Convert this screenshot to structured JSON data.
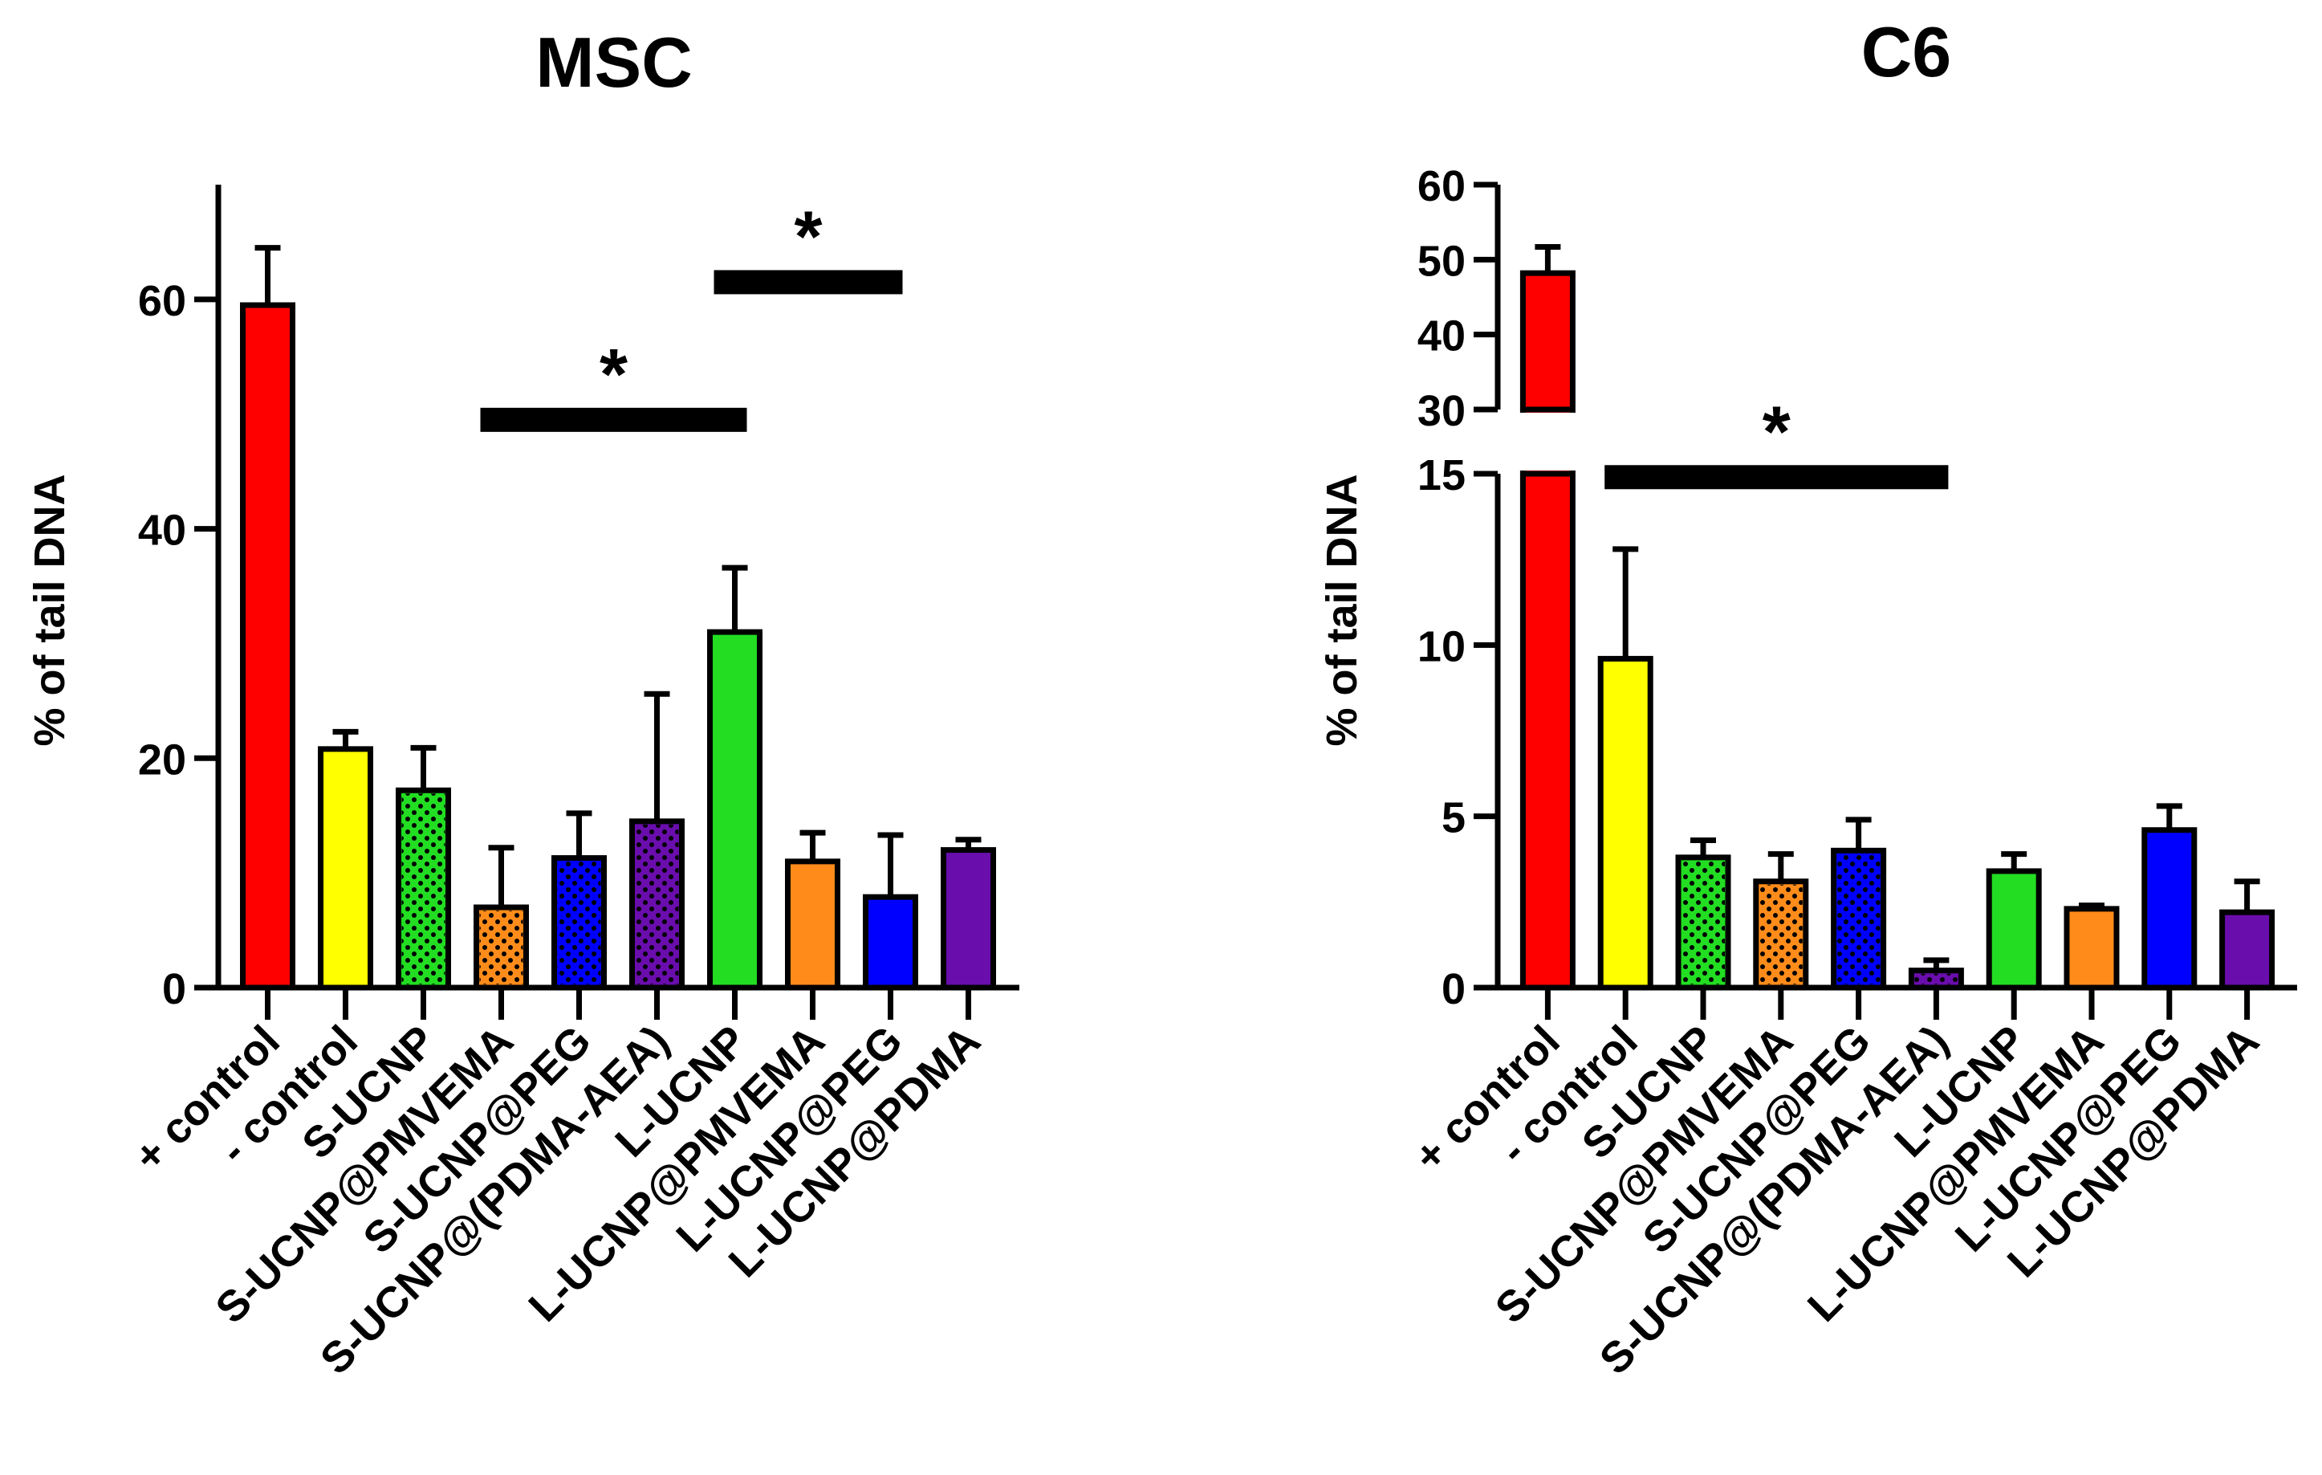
{
  "chart_data": [
    {
      "type": "bar",
      "title": "MSC",
      "xlabel": "",
      "ylabel": "% of tail DNA",
      "ylim": [
        0,
        70
      ],
      "yticks": [
        0,
        20,
        40,
        60
      ],
      "categories": [
        "+ control",
        "- control",
        "S-UCNP",
        "S-UCNP@PMVEMA",
        "S-UCNP@PEG",
        "S-UCNP@(PDMA-AEA)",
        "L-UCNP",
        "L-UCNP@PMVEMA",
        "L-UCNP@PEG",
        "L-UCNP@PDMA"
      ],
      "values": [
        59.5,
        20.8,
        17.2,
        7.0,
        11.3,
        14.5,
        31.0,
        11.0,
        7.9,
        12.0
      ],
      "errors": [
        5.0,
        1.5,
        3.7,
        5.2,
        3.9,
        11.1,
        5.6,
        2.5,
        5.4,
        0.9
      ],
      "colors": [
        "#ff0000",
        "#ffff00",
        "#22dd22",
        "#ff8c1a",
        "#0000ff",
        "#6a0dad",
        "#22dd22",
        "#ff8c1a",
        "#0000ff",
        "#6a0dad"
      ],
      "dotted": [
        false,
        false,
        true,
        true,
        true,
        true,
        false,
        false,
        false,
        false
      ],
      "significance": [
        {
          "from": 3,
          "to": 6,
          "y": 49.5,
          "label": "*"
        },
        {
          "from": 6,
          "to": 8,
          "y": 61.5,
          "label": "*"
        }
      ]
    },
    {
      "type": "bar",
      "title": "C6",
      "xlabel": "",
      "ylabel": "% of tail DNA",
      "axis_break": {
        "lower": [
          0,
          15
        ],
        "upper": [
          30,
          60
        ]
      },
      "yticks_lower": [
        0,
        5,
        10,
        15
      ],
      "yticks_upper": [
        30,
        40,
        50,
        60
      ],
      "categories": [
        "+ control",
        "- control",
        "S-UCNP",
        "S-UCNP@PMVEMA",
        "S-UCNP@PEG",
        "S-UCNP@(PDMA-AEA)",
        "L-UCNP",
        "L-UCNP@PMVEMA",
        "L-UCNP@PEG",
        "L-UCNP@PDMA"
      ],
      "values": [
        48.2,
        9.6,
        3.8,
        3.1,
        4.0,
        0.5,
        3.4,
        2.3,
        4.6,
        2.2
      ],
      "errors": [
        3.5,
        3.2,
        0.5,
        0.8,
        0.9,
        0.3,
        0.5,
        0.1,
        0.7,
        0.9
      ],
      "colors": [
        "#ff0000",
        "#ffff00",
        "#22dd22",
        "#ff8c1a",
        "#0000ff",
        "#6a0dad",
        "#22dd22",
        "#ff8c1a",
        "#0000ff",
        "#6a0dad"
      ],
      "dotted": [
        false,
        false,
        true,
        true,
        true,
        true,
        false,
        false,
        false,
        false
      ],
      "significance": [
        {
          "from": 1,
          "to": 5,
          "y": 14.9,
          "label": "*"
        }
      ]
    }
  ]
}
